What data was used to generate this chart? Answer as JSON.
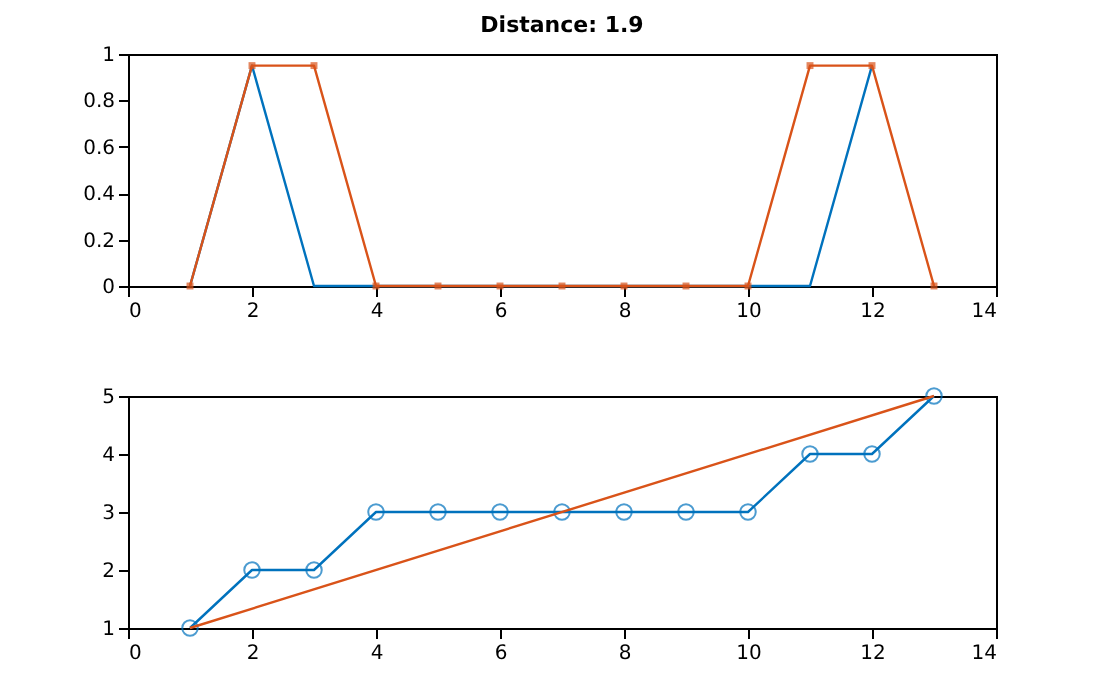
{
  "chart_data": [
    {
      "type": "line",
      "title": "Distance: 1.9",
      "xlim": [
        0,
        14
      ],
      "xticks": [
        0,
        2,
        4,
        6,
        8,
        10,
        12,
        14
      ],
      "ylim": [
        0,
        1
      ],
      "yticks": [
        0,
        0.2,
        0.4,
        0.6,
        0.8,
        1
      ],
      "grid": false,
      "series": [
        {
          "color": "#0072bd",
          "marker": "none",
          "x": [
            1,
            2,
            3,
            4,
            5,
            6,
            7,
            8,
            9,
            10,
            11,
            12
          ],
          "values": [
            0,
            0.95,
            0,
            0,
            0,
            0,
            0,
            0,
            0,
            0,
            0,
            0.95
          ]
        },
        {
          "color": "#d95319",
          "marker": "square",
          "x": [
            1,
            2,
            3,
            4,
            5,
            6,
            7,
            8,
            9,
            10,
            11,
            12,
            13
          ],
          "values": [
            0,
            0.95,
            0.95,
            0,
            0,
            0,
            0,
            0,
            0,
            0,
            0.95,
            0.95,
            0
          ]
        }
      ]
    },
    {
      "type": "line",
      "xlim": [
        0,
        14
      ],
      "xticks": [
        0,
        2,
        4,
        6,
        8,
        10,
        12,
        14
      ],
      "ylim": [
        1,
        5
      ],
      "yticks": [
        1,
        2,
        3,
        4,
        5
      ],
      "grid": false,
      "series": [
        {
          "color": "#0072bd",
          "marker": "circle",
          "x": [
            1,
            2,
            3,
            4,
            5,
            6,
            7,
            8,
            9,
            10,
            11,
            12,
            13
          ],
          "values": [
            1,
            2,
            2,
            3,
            3,
            3,
            3,
            3,
            3,
            3,
            4,
            4,
            5
          ]
        },
        {
          "color": "#d95319",
          "marker": "none",
          "x": [
            1,
            13
          ],
          "values": [
            1,
            5
          ]
        }
      ]
    }
  ]
}
